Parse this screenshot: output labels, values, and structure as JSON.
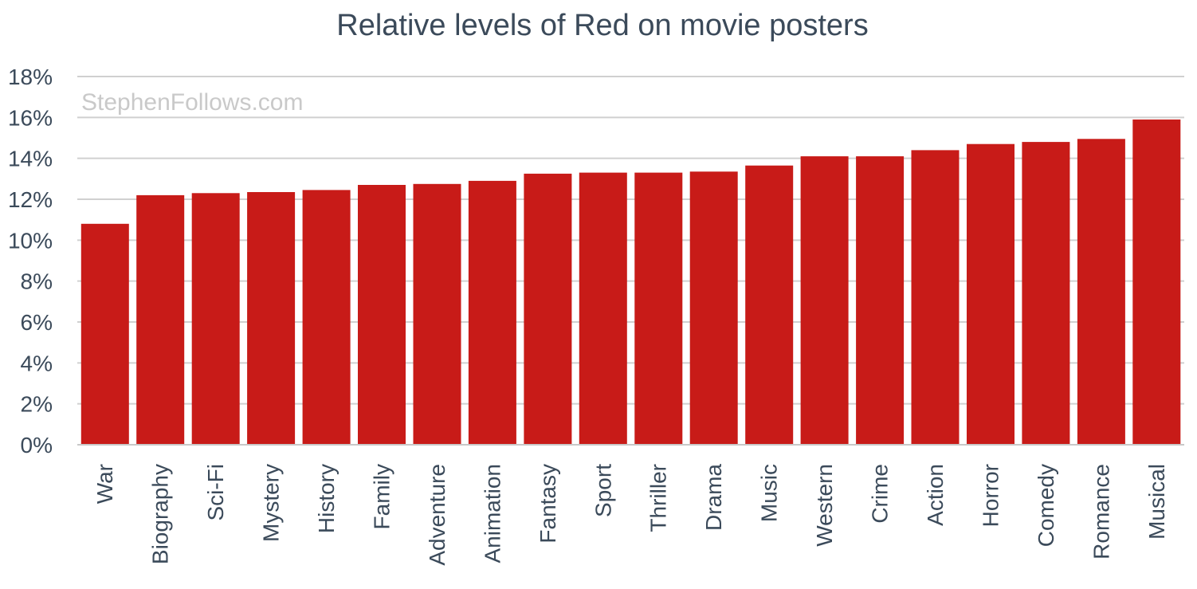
{
  "chart_data": {
    "type": "bar",
    "title": "Relative levels of Red on movie posters",
    "watermark": "StephenFollows.com",
    "xlabel": "",
    "ylabel": "",
    "ylim": [
      0,
      18
    ],
    "yticks": [
      0,
      2,
      4,
      6,
      8,
      10,
      12,
      14,
      16,
      18
    ],
    "ytick_labels": [
      "0%",
      "2%",
      "4%",
      "6%",
      "8%",
      "10%",
      "12%",
      "14%",
      "16%",
      "18%"
    ],
    "grid": true,
    "legend": "none",
    "bar_color": "#c81b18",
    "categories": [
      "War",
      "Biography",
      "Sci-Fi",
      "Mystery",
      "History",
      "Family",
      "Adventure",
      "Animation",
      "Fantasy",
      "Sport",
      "Thriller",
      "Drama",
      "Music",
      "Western",
      "Crime",
      "Action",
      "Horror",
      "Comedy",
      "Romance",
      "Musical"
    ],
    "values": [
      10.8,
      12.2,
      12.3,
      12.35,
      12.45,
      12.7,
      12.75,
      12.9,
      13.25,
      13.3,
      13.3,
      13.35,
      13.65,
      14.1,
      14.1,
      14.4,
      14.7,
      14.8,
      14.95,
      15.9
    ]
  }
}
